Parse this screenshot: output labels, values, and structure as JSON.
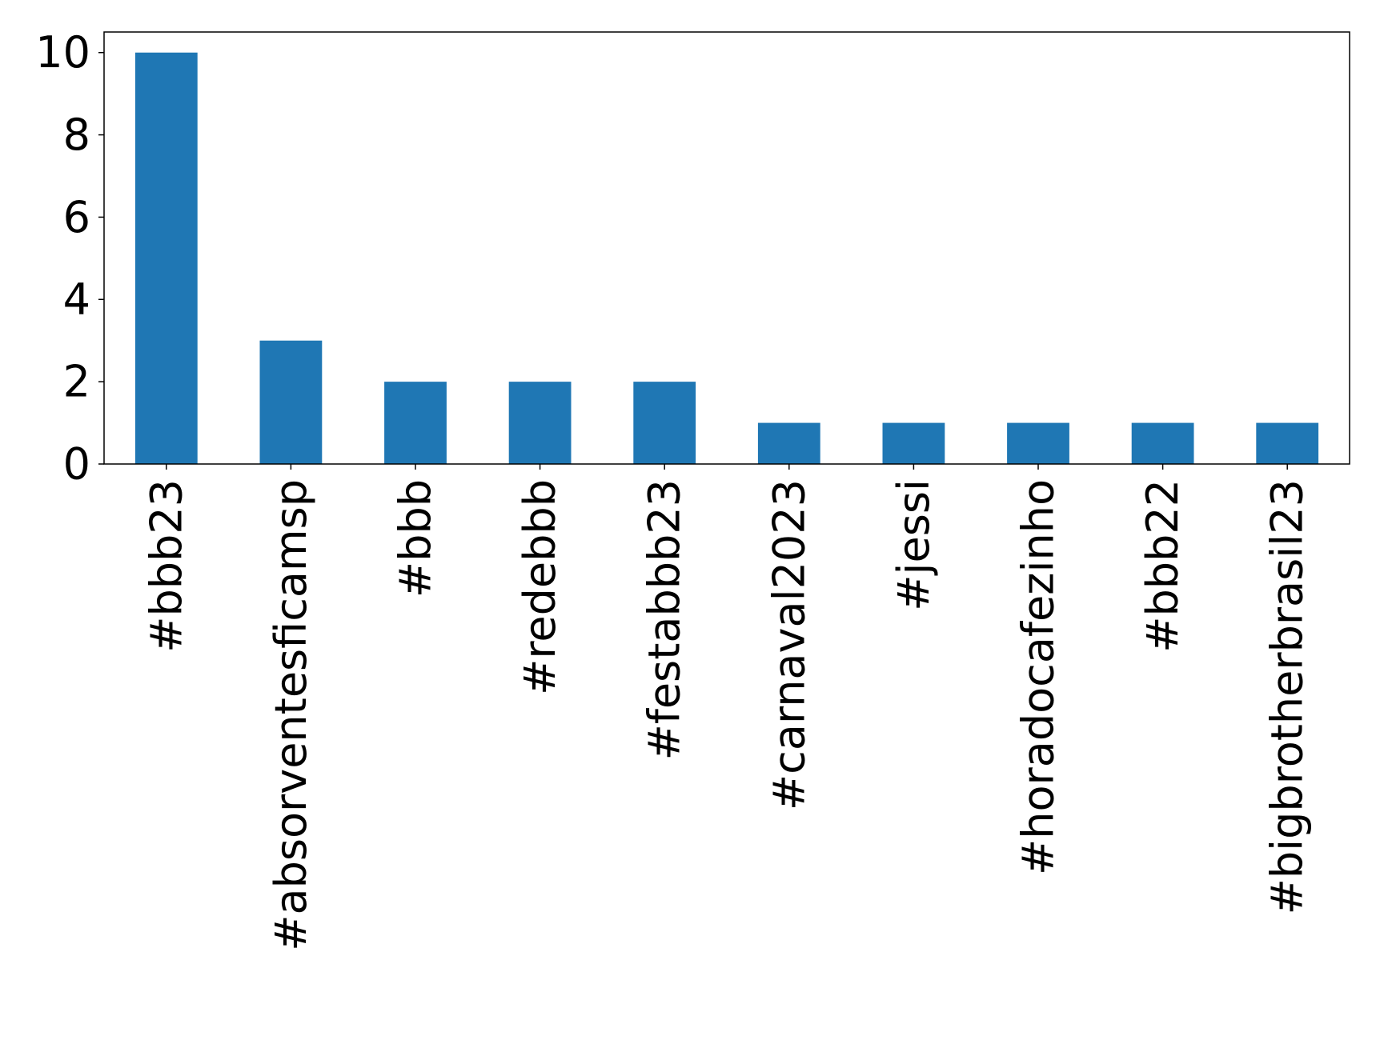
{
  "chart_data": {
    "type": "bar",
    "categories": [
      "#bbb23",
      "#absorventesficamsp",
      "#bbb",
      "#redebbb",
      "#festabbb23",
      "#carnaval2023",
      "#jessi",
      "#horadocafezinho",
      "#bbb22",
      "#bigbrotherbrasil23"
    ],
    "values": [
      10,
      3,
      2,
      2,
      2,
      1,
      1,
      1,
      1,
      1
    ],
    "title": "",
    "xlabel": "",
    "ylabel": "",
    "ylim": [
      0,
      10.5
    ],
    "yticks": [
      0,
      2,
      4,
      6,
      8,
      10
    ],
    "grid": false,
    "bar_color": "#1f77b4",
    "axis_color": "#000000",
    "x_tick_rotation": "vertical"
  }
}
